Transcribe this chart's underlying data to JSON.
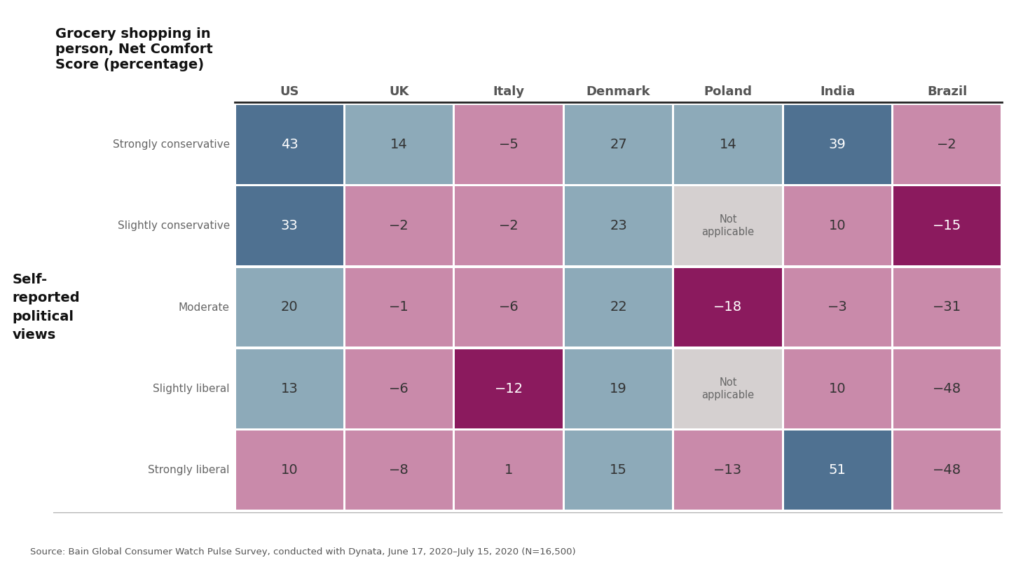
{
  "title_col": "Grocery shopping in\nperson, Net Comfort\nScore (percentage)",
  "columns": [
    "US",
    "UK",
    "Italy",
    "Denmark",
    "Poland",
    "India",
    "Brazil"
  ],
  "rows": [
    "Strongly conservative",
    "Slightly conservative",
    "Moderate",
    "Slightly liberal",
    "Strongly liberal"
  ],
  "values": [
    [
      43,
      14,
      -5,
      27,
      14,
      39,
      -2
    ],
    [
      33,
      -2,
      -2,
      23,
      null,
      10,
      -15
    ],
    [
      20,
      -1,
      -6,
      22,
      -18,
      -3,
      -31
    ],
    [
      13,
      -6,
      -12,
      19,
      null,
      10,
      -48
    ],
    [
      10,
      -8,
      1,
      15,
      -13,
      51,
      -48
    ]
  ],
  "colors": [
    [
      "#4f7191",
      "#8daab9",
      "#c98aaa",
      "#8daab9",
      "#8daab9",
      "#4f7191",
      "#c98aaa"
    ],
    [
      "#4f7191",
      "#c98aaa",
      "#c98aaa",
      "#8daab9",
      null,
      "#c98aaa",
      "#8b1a5e"
    ],
    [
      "#8daab9",
      "#c98aaa",
      "#c98aaa",
      "#8daab9",
      "#8b1a5e",
      "#c98aaa",
      "#c98aaa"
    ],
    [
      "#8daab9",
      "#c98aaa",
      "#8b1a5e",
      "#8daab9",
      null,
      "#c98aaa",
      "#c98aaa"
    ],
    [
      "#c98aaa",
      "#c98aaa",
      "#c98aaa",
      "#8daab9",
      "#c98aaa",
      "#4f7191",
      "#c98aaa"
    ]
  ],
  "na_color": "#d5d0d0",
  "source_text": "Source: Bain Global Consumer Watch Pulse Survey, conducted with Dynata, June 17, 2020–July 15, 2020 (N=16,500)",
  "ylabel": "Self-\nreported\npolitical\nviews",
  "background_color": "#ffffff",
  "text_color_dark": "#333333",
  "text_color_light": "#ffffff",
  "grid_color": "#ffffff",
  "separator_color": "#222222",
  "row_label_color": "#666666",
  "col_header_color": "#555555"
}
